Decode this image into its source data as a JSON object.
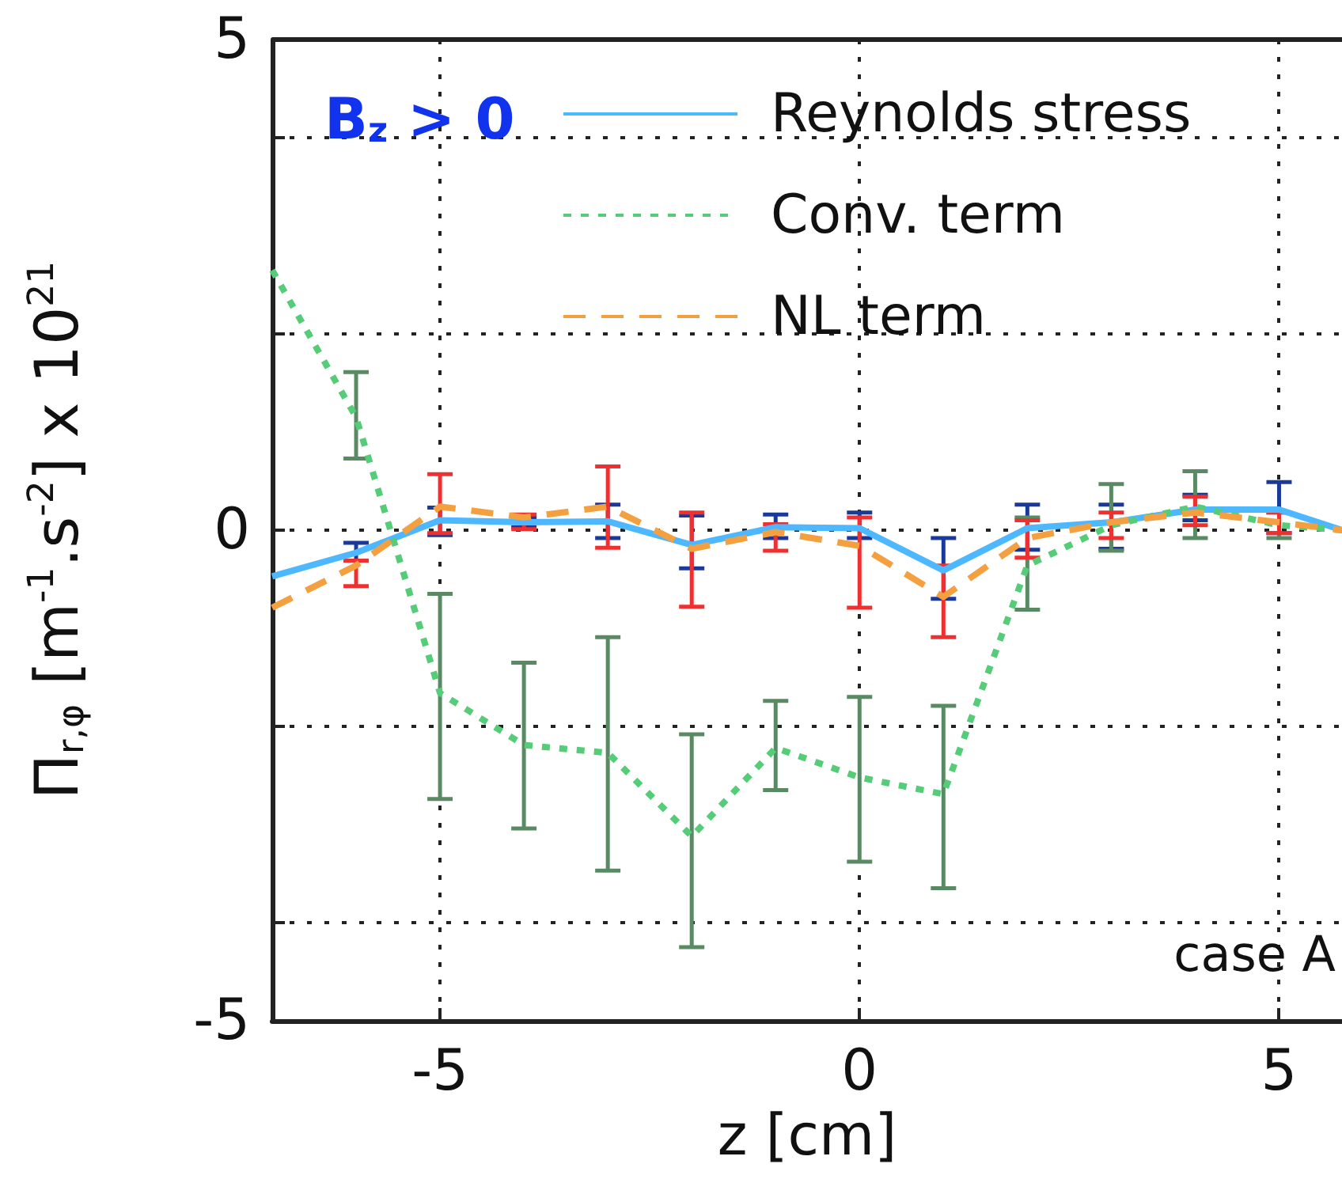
{
  "chart_data": {
    "type": "line",
    "xlabel": "z [cm]",
    "ylabel": "Π$_{r,φ}$ [m$^{-1}$.s$^{-2}$] x 10$^{21}$",
    "annotations": [
      "B$_{z}$ > 0",
      "case A"
    ],
    "x": [
      -7,
      -6,
      -5,
      -4,
      -3,
      -2,
      -1,
      0,
      1,
      2,
      3,
      4,
      5,
      5.75
    ],
    "xlim": [
      -7,
      5.75
    ],
    "xticks": [
      -5,
      0,
      5
    ],
    "ylim": [
      -5,
      5
    ],
    "yticks": [
      -5,
      {
        "value": -4,
        "label": null
      },
      {
        "value": -2,
        "label": null
      },
      0,
      {
        "value": 2,
        "label": null
      },
      {
        "value": 4,
        "label": null
      },
      5
    ],
    "grid": true,
    "legend": "top right",
    "marker": "none",
    "series": [
      {
        "name": "Reynolds stress",
        "color": "#4db8ff",
        "line_style": "solid",
        "values": [
          -0.47,
          -0.23,
          0.1,
          0.08,
          0.09,
          -0.15,
          0.03,
          0.02,
          -0.41,
          0.02,
          0.08,
          0.21,
          0.21,
          0.0
        ],
        "errors": [
          null,
          [
            -0.31,
            -0.13
          ],
          [
            -0.05,
            0.23
          ],
          [
            0.03,
            0.13
          ],
          [
            -0.08,
            0.26
          ],
          [
            -0.39,
            0.15
          ],
          [
            -0.08,
            0.16
          ],
          [
            -0.08,
            0.18
          ],
          [
            -0.7,
            -0.08
          ],
          [
            -0.2,
            0.26
          ],
          [
            -0.19,
            0.26
          ],
          [
            0.1,
            0.36
          ],
          [
            -0.03,
            0.49
          ],
          null
        ]
      },
      {
        "name": "Conv. term",
        "color": "#55cc77",
        "line_style": "dotted",
        "values": [
          2.65,
          1.15,
          -1.66,
          -2.19,
          -2.27,
          -3.12,
          -2.22,
          -2.52,
          -2.69,
          -0.36,
          0.05,
          0.24,
          0.05,
          0.0
        ],
        "errors": [
          null,
          [
            0.73,
            1.61
          ],
          [
            -2.74,
            -0.65
          ],
          [
            -3.04,
            -1.35
          ],
          [
            -3.47,
            -1.09
          ],
          [
            -4.25,
            -2.08
          ],
          [
            -2.65,
            -1.74
          ],
          [
            -3.38,
            -1.7
          ],
          [
            -3.65,
            -1.79
          ],
          [
            -0.81,
            0.13
          ],
          [
            -0.21,
            0.47
          ],
          [
            -0.08,
            0.6
          ],
          [
            -0.08,
            0.18
          ],
          null
        ]
      },
      {
        "name": "NL term",
        "color": "#f4a040",
        "line_style": "dashed",
        "values": [
          -0.79,
          -0.36,
          0.24,
          0.13,
          0.24,
          -0.19,
          -0.02,
          -0.16,
          -0.68,
          -0.08,
          0.08,
          0.18,
          0.08,
          0.0
        ],
        "errors": [
          null,
          [
            -0.57,
            -0.31
          ],
          [
            -0.03,
            0.57
          ],
          [
            0.01,
            0.16
          ],
          [
            -0.18,
            0.65
          ],
          [
            -0.78,
            0.18
          ],
          [
            -0.21,
            0.06
          ],
          [
            -0.79,
            0.13
          ],
          [
            -1.09,
            -0.36
          ],
          [
            -0.28,
            0.1
          ],
          [
            -0.08,
            0.18
          ],
          [
            0.05,
            0.34
          ],
          [
            -0.03,
            0.18
          ],
          null
        ]
      }
    ]
  }
}
